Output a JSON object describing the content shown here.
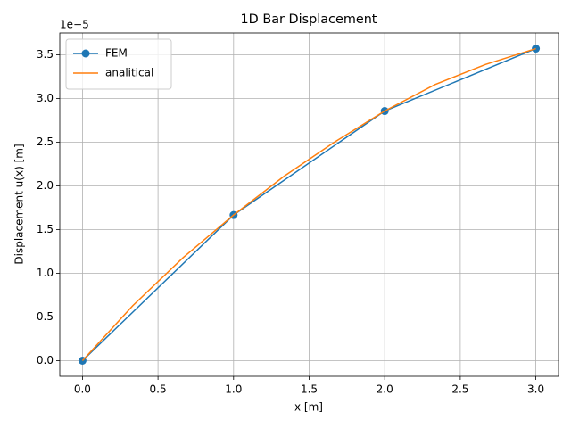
{
  "chart_data": {
    "type": "line",
    "title": "1D Bar Displacement",
    "xlabel": "x [m]",
    "ylabel": "Displacement u(x) [m]",
    "y_offset_label": "1e−5",
    "series": [
      {
        "name": "FEM",
        "color": "#1f77b4",
        "marker": "o",
        "x": [
          0,
          1,
          2,
          3
        ],
        "values": [
          0,
          1.667,
          2.857,
          3.571
        ]
      },
      {
        "name": "analitical",
        "color": "#ff7f0e",
        "x": [
          0,
          0.3333,
          0.6667,
          1,
          1.3333,
          1.6667,
          2,
          2.3333,
          2.6667,
          3
        ],
        "values": [
          0,
          0.63,
          1.18,
          1.667,
          2.11,
          2.5,
          2.857,
          3.16,
          3.39,
          3.571
        ]
      }
    ],
    "xlim": [
      -0.15,
      3.15
    ],
    "xticks": [
      {
        "value": 0,
        "label": "0.0"
      },
      0.5,
      {
        "value": 1,
        "label": "1.0"
      },
      1.5,
      {
        "value": 2,
        "label": "2.0"
      },
      2.5,
      {
        "value": 3,
        "label": "3.0"
      }
    ],
    "ylim": [
      -0.1786,
      3.75
    ],
    "yticks": [
      {
        "value": 0,
        "label": "0.0"
      },
      0.5,
      {
        "value": 1,
        "label": "1.0"
      },
      1.5,
      {
        "value": 2,
        "label": "2.0"
      },
      2.5,
      {
        "value": 3,
        "label": "3.0"
      },
      3.5
    ],
    "grid": true,
    "legend": "upper left"
  }
}
